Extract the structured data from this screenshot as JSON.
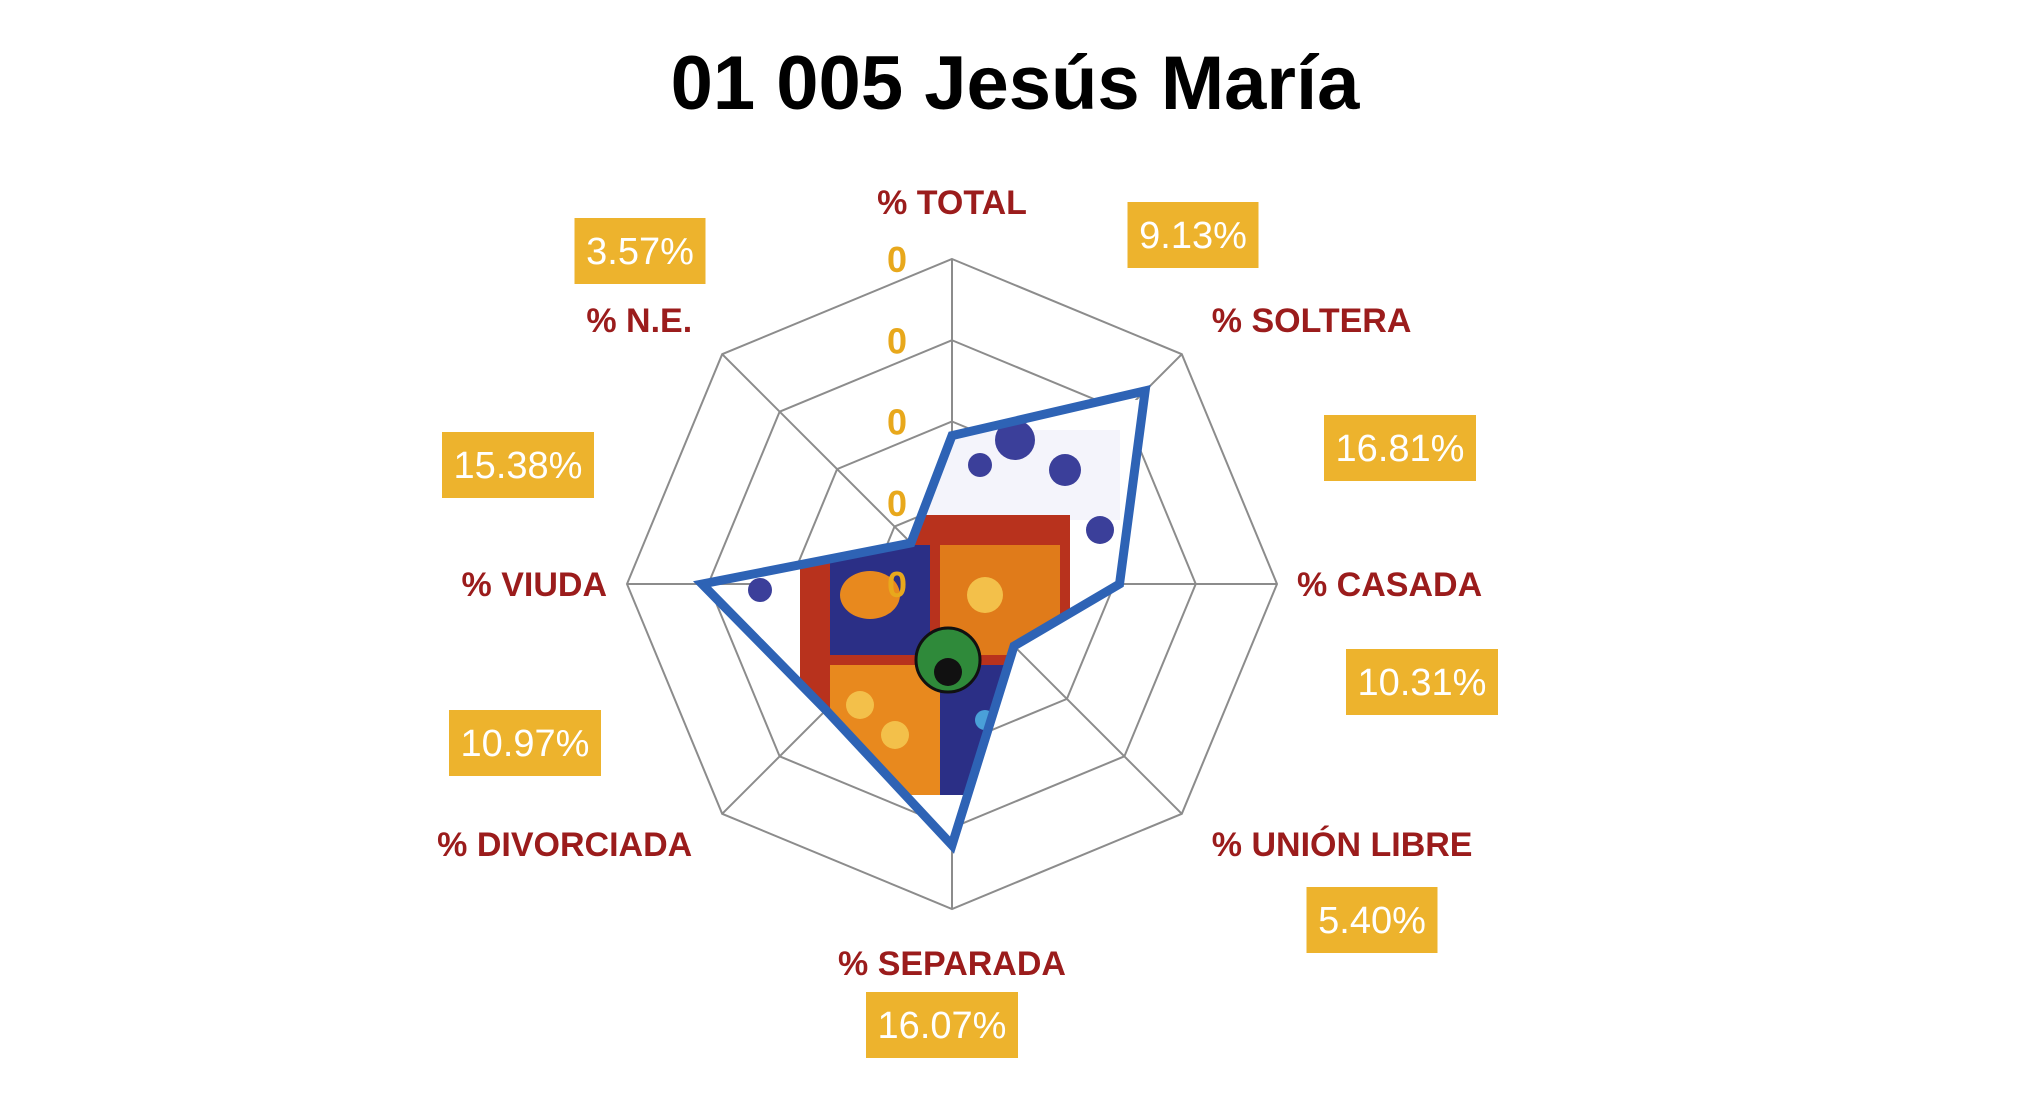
{
  "title": "01 005 Jesús María",
  "colors": {
    "axis_label": "#9b1c1c",
    "tick_label": "#e8a81c",
    "data_label_bg": "#edb32d",
    "data_label_text": "#ffffff",
    "series_line": "#2e63b5",
    "grid": "#8c8c8c"
  },
  "chart_data": {
    "type": "radar",
    "title": "01 005 Jesús María",
    "categories": [
      "% TOTAL",
      "% SOLTERA",
      "% CASADA",
      "% UNIÓN LIBRE",
      "% SEPARADA",
      "% DIVORCIADA",
      "% VIUDA",
      "% N.E."
    ],
    "series": [
      {
        "values": [
          0.0913,
          0.1681,
          0.1031,
          0.054,
          0.1607,
          0.1097,
          0.1538,
          0.0357
        ]
      }
    ],
    "data_labels": [
      "9.13%",
      "16.81%",
      "10.31%",
      "5.40%",
      "16.07%",
      "10.97%",
      "15.38%",
      "3.57%"
    ],
    "tick_labels": [
      "0",
      "0",
      "0",
      "0",
      "0"
    ],
    "range": [
      0,
      0.2
    ],
    "grid_levels": 4,
    "grid": true,
    "legend": "none"
  }
}
